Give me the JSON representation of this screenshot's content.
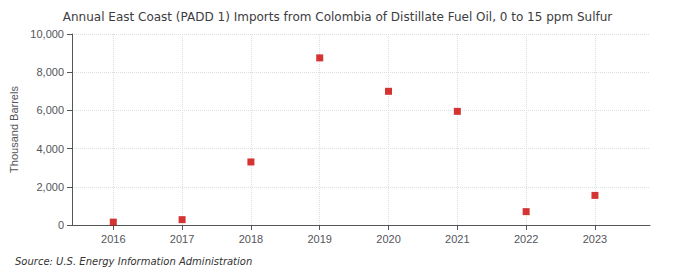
{
  "chart_data": {
    "type": "scatter",
    "title": "Annual East Coast (PADD 1) Imports from Colombia of Distillate Fuel Oil, 0 to 15 ppm Sulfur",
    "ylabel": "Thousand Barrels",
    "source": "Source: U.S. Energy Information Administration",
    "x": [
      2016,
      2017,
      2018,
      2019,
      2020,
      2021,
      2022,
      2023
    ],
    "values": [
      150,
      280,
      3300,
      8750,
      7000,
      5950,
      700,
      1550
    ],
    "color": "#cc0000",
    "marker": "square",
    "xlim": [
      2015.4,
      2023.8
    ],
    "xticks": [
      2016,
      2017,
      2018,
      2019,
      2020,
      2021,
      2022,
      2023
    ],
    "ylim": [
      0,
      10000
    ],
    "yticks": [
      0,
      {
        "value": 2000,
        "label": "2,000"
      },
      {
        "value": 4000,
        "label": "4,000"
      },
      {
        "value": 6000,
        "label": "6,000"
      },
      {
        "value": 8000,
        "label": "8,000"
      },
      {
        "value": 10000,
        "label": "10,000"
      }
    ],
    "grid": true
  }
}
